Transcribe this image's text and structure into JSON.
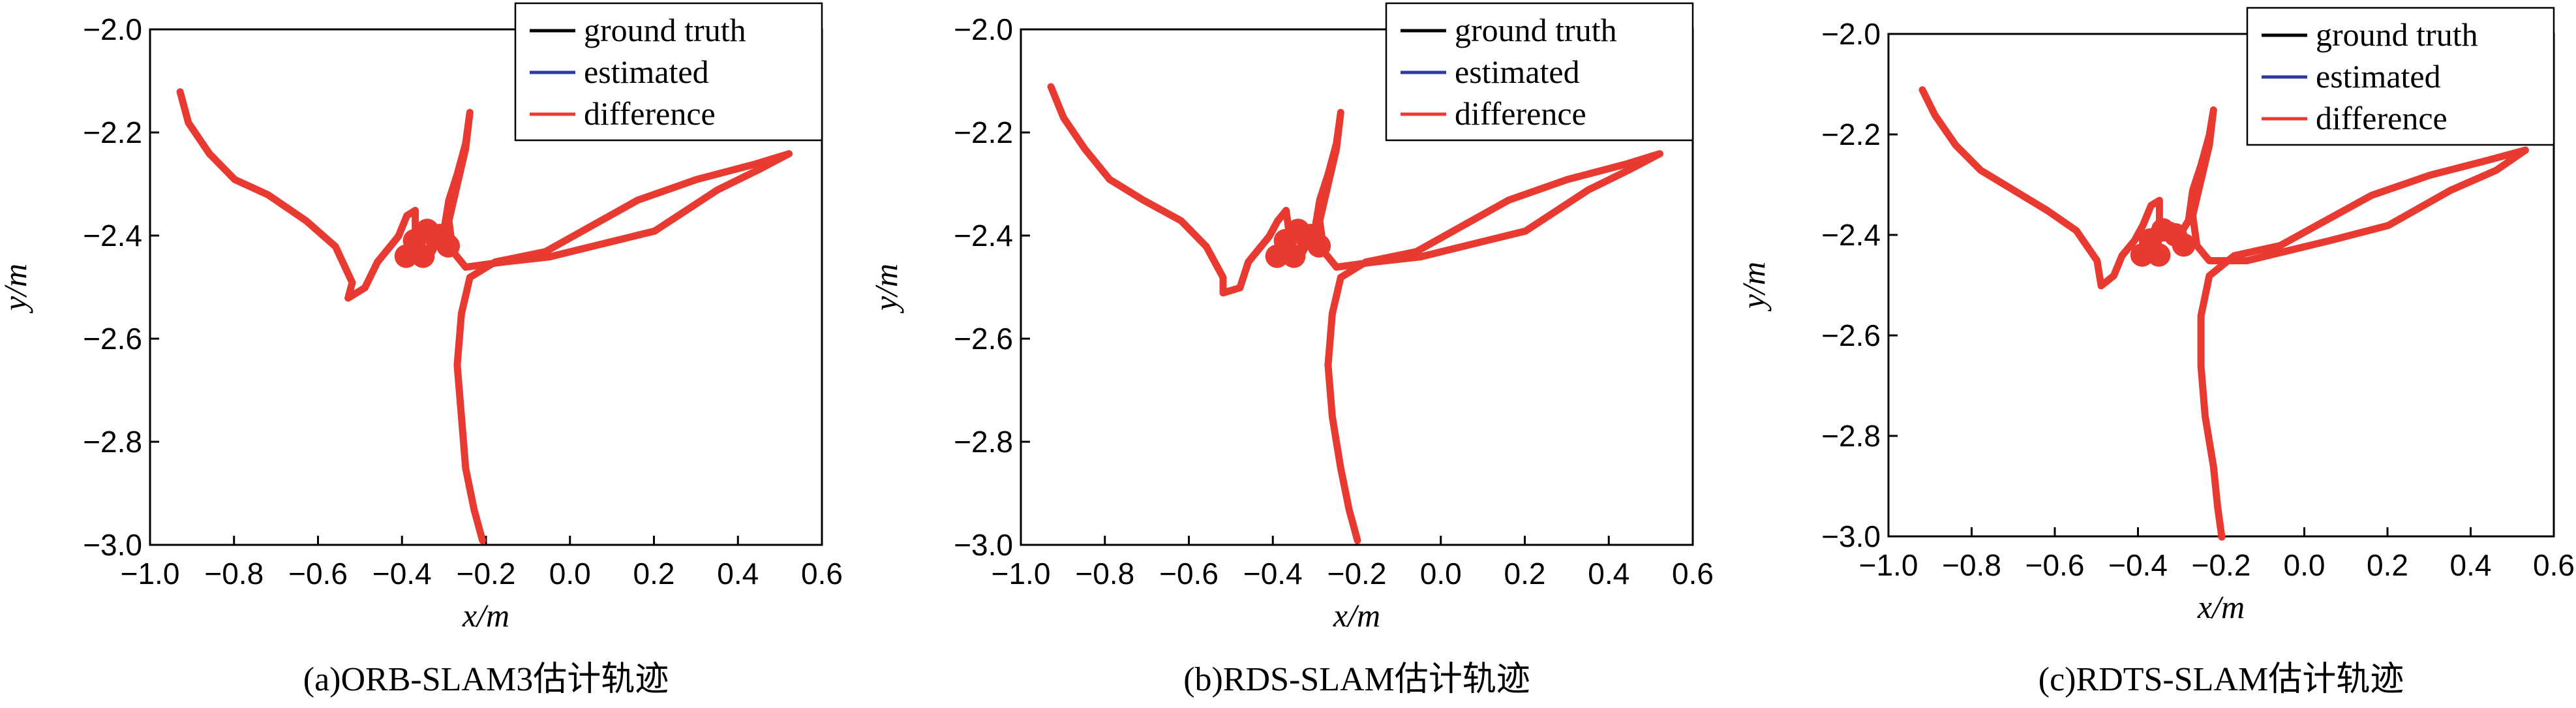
{
  "chart_data": [
    {
      "type": "line",
      "caption": "(a)ORB-SLAM3估计轨迹",
      "xlabel": "x/m",
      "ylabel": "y/m",
      "xlim": [
        -1.0,
        0.6
      ],
      "ylim": [
        -3.0,
        -2.0
      ],
      "xticks": [
        "−1.0",
        "−0.8",
        "−0.6",
        "−0.4",
        "−0.2",
        "0.0",
        "0.2",
        "0.4",
        "0.6"
      ],
      "yticks": [
        "−2.0",
        "−2.2",
        "−2.4",
        "−2.6",
        "−2.8",
        "−3.0"
      ],
      "legend_position": "top-right",
      "series": [
        {
          "name": "ground truth",
          "color": "#000000"
        },
        {
          "name": "estimated",
          "color": "#2b3a9c"
        },
        {
          "name": "difference",
          "color": "#e83a30"
        }
      ],
      "trajectory": [
        [
          -0.93,
          -2.12
        ],
        [
          -0.91,
          -2.18
        ],
        [
          -0.86,
          -2.24
        ],
        [
          -0.8,
          -2.29
        ],
        [
          -0.72,
          -2.32
        ],
        [
          -0.63,
          -2.37
        ],
        [
          -0.56,
          -2.42
        ],
        [
          -0.52,
          -2.49
        ],
        [
          -0.53,
          -2.52
        ],
        [
          -0.49,
          -2.5
        ],
        [
          -0.46,
          -2.45
        ],
        [
          -0.43,
          -2.42
        ],
        [
          -0.41,
          -2.4
        ],
        [
          -0.39,
          -2.36
        ],
        [
          -0.37,
          -2.35
        ],
        [
          -0.37,
          -2.41
        ],
        [
          -0.34,
          -2.4
        ],
        [
          -0.33,
          -2.43
        ],
        [
          -0.3,
          -2.38
        ],
        [
          -0.29,
          -2.33
        ],
        [
          -0.27,
          -2.28
        ],
        [
          -0.25,
          -2.22
        ],
        [
          -0.24,
          -2.16
        ],
        [
          -0.25,
          -2.23
        ],
        [
          -0.27,
          -2.3
        ],
        [
          -0.29,
          -2.37
        ],
        [
          -0.28,
          -2.43
        ],
        [
          -0.25,
          -2.46
        ],
        [
          -0.16,
          -2.45
        ],
        [
          -0.05,
          -2.44
        ],
        [
          0.05,
          -2.42
        ],
        [
          0.2,
          -2.39
        ],
        [
          0.35,
          -2.31
        ],
        [
          0.45,
          -2.27
        ],
        [
          0.52,
          -2.24
        ],
        [
          0.44,
          -2.26
        ],
        [
          0.3,
          -2.29
        ],
        [
          0.16,
          -2.33
        ],
        [
          0.05,
          -2.38
        ],
        [
          -0.06,
          -2.43
        ],
        [
          -0.18,
          -2.45
        ],
        [
          -0.24,
          -2.48
        ],
        [
          -0.26,
          -2.55
        ],
        [
          -0.27,
          -2.65
        ],
        [
          -0.26,
          -2.75
        ],
        [
          -0.25,
          -2.85
        ],
        [
          -0.23,
          -2.93
        ],
        [
          -0.21,
          -2.99
        ]
      ]
    },
    {
      "type": "line",
      "caption": "(b)RDS-SLAM估计轨迹",
      "xlabel": "x/m",
      "ylabel": "y/m",
      "xlim": [
        -1.0,
        0.6
      ],
      "ylim": [
        -3.0,
        -2.0
      ],
      "xticks": [
        "−1.0",
        "−0.8",
        "−0.6",
        "−0.4",
        "−0.2",
        "0.0",
        "0.2",
        "0.4",
        "0.6"
      ],
      "yticks": [
        "−2.0",
        "−2.2",
        "−2.4",
        "−2.6",
        "−2.8",
        "−3.0"
      ],
      "legend_position": "top-right",
      "series": [
        {
          "name": "ground truth",
          "color": "#000000"
        },
        {
          "name": "estimated",
          "color": "#2b3a9c"
        },
        {
          "name": "difference",
          "color": "#e83a30"
        }
      ],
      "trajectory": [
        [
          -0.93,
          -2.11
        ],
        [
          -0.9,
          -2.17
        ],
        [
          -0.85,
          -2.23
        ],
        [
          -0.79,
          -2.29
        ],
        [
          -0.71,
          -2.33
        ],
        [
          -0.62,
          -2.37
        ],
        [
          -0.56,
          -2.42
        ],
        [
          -0.52,
          -2.48
        ],
        [
          -0.52,
          -2.51
        ],
        [
          -0.48,
          -2.5
        ],
        [
          -0.46,
          -2.45
        ],
        [
          -0.43,
          -2.42
        ],
        [
          -0.41,
          -2.4
        ],
        [
          -0.39,
          -2.37
        ],
        [
          -0.37,
          -2.35
        ],
        [
          -0.36,
          -2.41
        ],
        [
          -0.34,
          -2.4
        ],
        [
          -0.33,
          -2.43
        ],
        [
          -0.3,
          -2.38
        ],
        [
          -0.29,
          -2.33
        ],
        [
          -0.27,
          -2.28
        ],
        [
          -0.25,
          -2.22
        ],
        [
          -0.24,
          -2.16
        ],
        [
          -0.25,
          -2.23
        ],
        [
          -0.27,
          -2.3
        ],
        [
          -0.29,
          -2.37
        ],
        [
          -0.28,
          -2.43
        ],
        [
          -0.25,
          -2.46
        ],
        [
          -0.16,
          -2.45
        ],
        [
          -0.05,
          -2.44
        ],
        [
          0.05,
          -2.42
        ],
        [
          0.2,
          -2.39
        ],
        [
          0.35,
          -2.31
        ],
        [
          0.45,
          -2.27
        ],
        [
          0.52,
          -2.24
        ],
        [
          0.44,
          -2.26
        ],
        [
          0.3,
          -2.29
        ],
        [
          0.16,
          -2.33
        ],
        [
          0.05,
          -2.38
        ],
        [
          -0.06,
          -2.43
        ],
        [
          -0.18,
          -2.45
        ],
        [
          -0.24,
          -2.48
        ],
        [
          -0.26,
          -2.55
        ],
        [
          -0.27,
          -2.65
        ],
        [
          -0.26,
          -2.75
        ],
        [
          -0.24,
          -2.85
        ],
        [
          -0.22,
          -2.93
        ],
        [
          -0.2,
          -2.99
        ]
      ]
    },
    {
      "type": "line",
      "caption": "(c)RDTS-SLAM估计轨迹",
      "xlabel": "x/m",
      "ylabel": "y/m",
      "xlim": [
        -1.0,
        0.6
      ],
      "ylim": [
        -3.0,
        -2.0
      ],
      "xticks": [
        "−1.0",
        "−0.8",
        "−0.6",
        "−0.4",
        "−0.2",
        "0.0",
        "0.2",
        "0.4",
        "0.6"
      ],
      "yticks": [
        "−2.0",
        "−2.2",
        "−2.4",
        "−2.6",
        "−2.8",
        "−3.0"
      ],
      "legend_position": "top-right",
      "series": [
        {
          "name": "ground truth",
          "color": "#000000"
        },
        {
          "name": "estimated",
          "color": "#2b3a9c"
        },
        {
          "name": "difference",
          "color": "#e83a30"
        }
      ],
      "trajectory": [
        [
          -0.92,
          -2.11
        ],
        [
          -0.89,
          -2.16
        ],
        [
          -0.84,
          -2.22
        ],
        [
          -0.78,
          -2.27
        ],
        [
          -0.7,
          -2.31
        ],
        [
          -0.62,
          -2.35
        ],
        [
          -0.55,
          -2.39
        ],
        [
          -0.5,
          -2.45
        ],
        [
          -0.49,
          -2.5
        ],
        [
          -0.46,
          -2.48
        ],
        [
          -0.44,
          -2.44
        ],
        [
          -0.41,
          -2.41
        ],
        [
          -0.39,
          -2.38
        ],
        [
          -0.37,
          -2.34
        ],
        [
          -0.35,
          -2.33
        ],
        [
          -0.35,
          -2.39
        ],
        [
          -0.32,
          -2.38
        ],
        [
          -0.31,
          -2.41
        ],
        [
          -0.28,
          -2.37
        ],
        [
          -0.27,
          -2.31
        ],
        [
          -0.25,
          -2.26
        ],
        [
          -0.23,
          -2.2
        ],
        [
          -0.22,
          -2.15
        ],
        [
          -0.23,
          -2.22
        ],
        [
          -0.25,
          -2.29
        ],
        [
          -0.27,
          -2.36
        ],
        [
          -0.26,
          -2.42
        ],
        [
          -0.23,
          -2.45
        ],
        [
          -0.14,
          -2.45
        ],
        [
          -0.04,
          -2.43
        ],
        [
          0.06,
          -2.41
        ],
        [
          0.2,
          -2.38
        ],
        [
          0.35,
          -2.31
        ],
        [
          0.46,
          -2.27
        ],
        [
          0.53,
          -2.23
        ],
        [
          0.44,
          -2.25
        ],
        [
          0.3,
          -2.28
        ],
        [
          0.16,
          -2.32
        ],
        [
          0.05,
          -2.37
        ],
        [
          -0.06,
          -2.42
        ],
        [
          -0.17,
          -2.44
        ],
        [
          -0.23,
          -2.48
        ],
        [
          -0.25,
          -2.56
        ],
        [
          -0.25,
          -2.66
        ],
        [
          -0.24,
          -2.76
        ],
        [
          -0.22,
          -2.86
        ],
        [
          -0.21,
          -2.94
        ],
        [
          -0.2,
          -3.0
        ]
      ]
    }
  ]
}
